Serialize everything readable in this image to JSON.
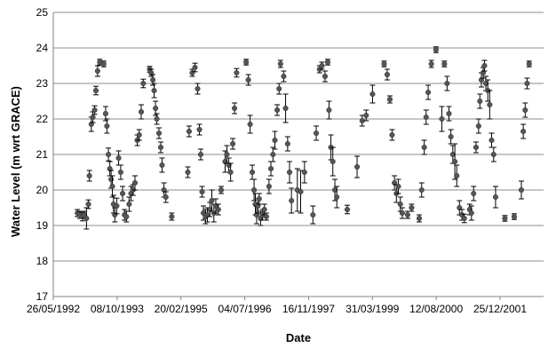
{
  "chart_data": {
    "type": "scatter",
    "title": "",
    "xlabel": "Date",
    "ylabel": "Water Level (m wrt GRACE)",
    "ylim": [
      17,
      25
    ],
    "yticks": [
      17,
      18,
      19,
      20,
      21,
      22,
      23,
      24,
      25
    ],
    "xlim": [
      "1992-05-26",
      "2002-12-01"
    ],
    "xticks": [
      "26/05/1992",
      "08/10/1993",
      "20/02/1995",
      "04/07/1996",
      "16/11/1997",
      "31/03/1999",
      "12/08/2000",
      "25/12/2001"
    ],
    "grid": "horizontal",
    "legend": "none",
    "marker_color": "#555555",
    "series": [
      {
        "points": [
          [
            "1992-12-01",
            19.35,
            0.1
          ],
          [
            "1992-12-20",
            19.3,
            0.1
          ],
          [
            "1993-01-10",
            19.25,
            0.12
          ],
          [
            "1993-01-25",
            19.3,
            0.1
          ],
          [
            "1993-02-10",
            19.2,
            0.3
          ],
          [
            "1993-02-25",
            19.6,
            0.12
          ],
          [
            "1993-03-05",
            20.4,
            0.15
          ],
          [
            "1993-03-20",
            21.85,
            0.2
          ],
          [
            "1993-04-01",
            22.05,
            0.15
          ],
          [
            "1993-04-15",
            22.25,
            0.12
          ],
          [
            "1993-04-25",
            22.8,
            0.12
          ],
          [
            "1993-05-08",
            23.35,
            0.15
          ],
          [
            "1993-05-25",
            23.6,
            0.08
          ],
          [
            "1993-06-25",
            23.55,
            0.08
          ],
          [
            "1993-07-10",
            22.15,
            0.2
          ],
          [
            "1993-07-20",
            21.8,
            0.2
          ],
          [
            "1993-08-01",
            21.0,
            0.18
          ],
          [
            "1993-08-12",
            20.6,
            0.2
          ],
          [
            "1993-08-22",
            20.3,
            0.25
          ],
          [
            "1993-09-01",
            20.1,
            0.3
          ],
          [
            "1993-09-10",
            19.6,
            0.25
          ],
          [
            "1993-09-20",
            19.3,
            0.2
          ],
          [
            "1993-10-05",
            19.55,
            0.22
          ],
          [
            "1993-10-20",
            20.9,
            0.2
          ],
          [
            "1993-11-05",
            20.5,
            0.2
          ],
          [
            "1993-11-20",
            19.9,
            0.2
          ],
          [
            "1993-12-05",
            19.3,
            0.15
          ],
          [
            "1993-12-20",
            19.25,
            0.15
          ],
          [
            "1994-01-10",
            19.6,
            0.2
          ],
          [
            "1994-01-25",
            19.9,
            0.2
          ],
          [
            "1994-02-10",
            20.0,
            0.15
          ],
          [
            "1994-02-25",
            20.2,
            0.2
          ],
          [
            "1994-03-15",
            21.4,
            0.15
          ],
          [
            "1994-03-30",
            21.55,
            0.15
          ],
          [
            "1994-04-15",
            22.2,
            0.2
          ],
          [
            "1994-05-01",
            23.0,
            0.12
          ],
          [
            "1994-06-20",
            23.4,
            0.08
          ],
          [
            "1994-07-01",
            23.3,
            0.1
          ],
          [
            "1994-07-15",
            23.1,
            0.15
          ],
          [
            "1994-07-25",
            22.8,
            0.2
          ],
          [
            "1994-08-05",
            22.3,
            0.2
          ],
          [
            "1994-08-15",
            22.0,
            0.15
          ],
          [
            "1994-09-01",
            21.6,
            0.15
          ],
          [
            "1994-09-15",
            21.2,
            0.15
          ],
          [
            "1994-09-25",
            20.7,
            0.2
          ],
          [
            "1994-10-10",
            20.0,
            0.2
          ],
          [
            "1994-10-25",
            19.8,
            0.15
          ],
          [
            "1994-12-10",
            19.25,
            0.1
          ],
          [
            "1995-04-15",
            20.5,
            0.15
          ],
          [
            "1995-04-25",
            21.65,
            0.15
          ],
          [
            "1995-05-20",
            23.3,
            0.1
          ],
          [
            "1995-06-10",
            23.45,
            0.12
          ],
          [
            "1995-07-01",
            22.85,
            0.15
          ],
          [
            "1995-07-15",
            21.7,
            0.15
          ],
          [
            "1995-07-25",
            21.0,
            0.15
          ],
          [
            "1995-08-05",
            19.95,
            0.15
          ],
          [
            "1995-08-15",
            19.35,
            0.2
          ],
          [
            "1995-09-01",
            19.25,
            0.2
          ],
          [
            "1995-09-15",
            19.3,
            0.2
          ],
          [
            "1995-10-05",
            19.45,
            0.2
          ],
          [
            "1995-10-20",
            19.7,
            0.3
          ],
          [
            "1995-11-05",
            19.35,
            0.25
          ],
          [
            "1995-11-20",
            19.55,
            0.2
          ],
          [
            "1995-12-10",
            19.45,
            0.15
          ],
          [
            "1996-01-01",
            20.0,
            0.1
          ],
          [
            "1996-02-01",
            20.8,
            0.3
          ],
          [
            "1996-02-15",
            21.0,
            0.25
          ],
          [
            "1996-03-01",
            20.7,
            0.2
          ],
          [
            "1996-03-15",
            20.5,
            0.25
          ],
          [
            "1996-04-01",
            21.3,
            0.15
          ],
          [
            "1996-04-15",
            22.3,
            0.15
          ],
          [
            "1996-05-01",
            23.3,
            0.12
          ],
          [
            "1996-07-15",
            23.6,
            0.08
          ],
          [
            "1996-08-01",
            23.1,
            0.15
          ],
          [
            "1996-08-15",
            21.85,
            0.25
          ],
          [
            "1996-09-01",
            20.5,
            0.2
          ],
          [
            "1996-09-15",
            20.0,
            0.3
          ],
          [
            "1996-09-25",
            19.6,
            0.3
          ],
          [
            "1996-10-05",
            19.3,
            0.25
          ],
          [
            "1996-10-15",
            19.55,
            0.2
          ],
          [
            "1996-10-25",
            19.75,
            0.15
          ],
          [
            "1996-11-05",
            19.2,
            0.2
          ],
          [
            "1996-11-20",
            19.3,
            0.15
          ],
          [
            "1996-12-05",
            19.45,
            0.15
          ],
          [
            "1996-12-20",
            19.25,
            0.1
          ],
          [
            "1997-01-10",
            20.1,
            0.2
          ],
          [
            "1997-01-25",
            20.6,
            0.2
          ],
          [
            "1997-02-10",
            21.0,
            0.2
          ],
          [
            "1997-02-25",
            21.4,
            0.25
          ],
          [
            "1997-03-15",
            22.25,
            0.15
          ],
          [
            "1997-03-30",
            22.85,
            0.15
          ],
          [
            "1997-04-10",
            23.55,
            0.1
          ],
          [
            "1997-05-05",
            23.2,
            0.15
          ],
          [
            "1997-05-20",
            22.3,
            0.4
          ],
          [
            "1997-06-05",
            21.3,
            0.2
          ],
          [
            "1997-06-20",
            20.5,
            0.3
          ],
          [
            "1997-07-05",
            19.7,
            0.35
          ],
          [
            "1997-08-20",
            20.0,
            0.6
          ],
          [
            "1997-09-15",
            19.95,
            0.6
          ],
          [
            "1997-10-15",
            20.5,
            0.3
          ],
          [
            "1997-12-20",
            19.3,
            0.25
          ],
          [
            "1998-01-15",
            21.6,
            0.2
          ],
          [
            "1998-02-10",
            23.4,
            0.1
          ],
          [
            "1998-03-01",
            23.5,
            0.1
          ],
          [
            "1998-03-25",
            23.2,
            0.15
          ],
          [
            "1998-04-15",
            23.6,
            0.08
          ],
          [
            "1998-04-25",
            22.25,
            0.25
          ],
          [
            "1998-05-10",
            21.2,
            0.35
          ],
          [
            "1998-05-25",
            20.8,
            0.4
          ],
          [
            "1998-06-10",
            20.0,
            0.3
          ],
          [
            "1998-06-25",
            19.8,
            0.3
          ],
          [
            "1998-09-15",
            19.45,
            0.12
          ],
          [
            "1998-12-01",
            20.65,
            0.3
          ],
          [
            "1999-01-10",
            21.95,
            0.15
          ],
          [
            "1999-02-10",
            22.1,
            0.15
          ],
          [
            "1999-04-01",
            22.7,
            0.25
          ],
          [
            "1999-07-01",
            23.55,
            0.08
          ],
          [
            "1999-07-25",
            23.25,
            0.15
          ],
          [
            "1999-08-15",
            22.55,
            0.1
          ],
          [
            "1999-09-01",
            21.55,
            0.15
          ],
          [
            "1999-09-20",
            20.2,
            0.2
          ],
          [
            "1999-10-05",
            19.9,
            0.25
          ],
          [
            "1999-10-20",
            20.1,
            0.2
          ],
          [
            "1999-11-05",
            19.6,
            0.2
          ],
          [
            "1999-11-20",
            19.35,
            0.15
          ],
          [
            "2000-01-01",
            19.3,
            0.1
          ],
          [
            "2000-02-01",
            19.5,
            0.1
          ],
          [
            "2000-04-01",
            19.2,
            0.1
          ],
          [
            "2000-04-20",
            20.0,
            0.2
          ],
          [
            "2000-05-10",
            21.2,
            0.2
          ],
          [
            "2000-05-25",
            22.05,
            0.2
          ],
          [
            "2000-06-10",
            22.75,
            0.2
          ],
          [
            "2000-07-05",
            23.55,
            0.1
          ],
          [
            "2000-08-10",
            23.95,
            0.08
          ],
          [
            "2000-09-25",
            22.0,
            0.35
          ],
          [
            "2000-10-15",
            23.55,
            0.08
          ],
          [
            "2000-11-05",
            23.0,
            0.2
          ],
          [
            "2000-11-20",
            22.15,
            0.2
          ],
          [
            "2000-12-05",
            21.5,
            0.2
          ],
          [
            "2000-12-20",
            21.0,
            0.25
          ],
          [
            "2001-01-05",
            20.8,
            0.5
          ],
          [
            "2001-01-20",
            20.4,
            0.3
          ],
          [
            "2001-02-10",
            19.5,
            0.2
          ],
          [
            "2001-03-01",
            19.3,
            0.15
          ],
          [
            "2001-03-20",
            19.2,
            0.12
          ],
          [
            "2001-05-01",
            19.45,
            0.15
          ],
          [
            "2001-05-15",
            19.35,
            0.2
          ],
          [
            "2001-06-01",
            19.9,
            0.2
          ],
          [
            "2001-06-20",
            21.2,
            0.15
          ],
          [
            "2001-07-10",
            21.8,
            0.2
          ],
          [
            "2001-07-20",
            22.5,
            0.2
          ],
          [
            "2001-08-01",
            23.1,
            0.2
          ],
          [
            "2001-08-15",
            23.3,
            0.15
          ],
          [
            "2001-08-25",
            23.5,
            0.15
          ],
          [
            "2001-09-05",
            23.0,
            0.2
          ],
          [
            "2001-09-20",
            22.8,
            0.3
          ],
          [
            "2001-10-05",
            22.4,
            0.4
          ],
          [
            "2001-10-20",
            21.4,
            0.2
          ],
          [
            "2001-11-05",
            21.0,
            0.2
          ],
          [
            "2001-11-20",
            19.8,
            0.3
          ],
          [
            "2002-02-01",
            19.2,
            0.08
          ],
          [
            "2002-04-15",
            19.25,
            0.08
          ],
          [
            "2002-06-10",
            20.0,
            0.25
          ],
          [
            "2002-06-25",
            21.65,
            0.2
          ],
          [
            "2002-07-10",
            22.25,
            0.2
          ],
          [
            "2002-07-25",
            23.0,
            0.15
          ],
          [
            "2002-08-10",
            23.55,
            0.08
          ]
        ]
      }
    ]
  }
}
